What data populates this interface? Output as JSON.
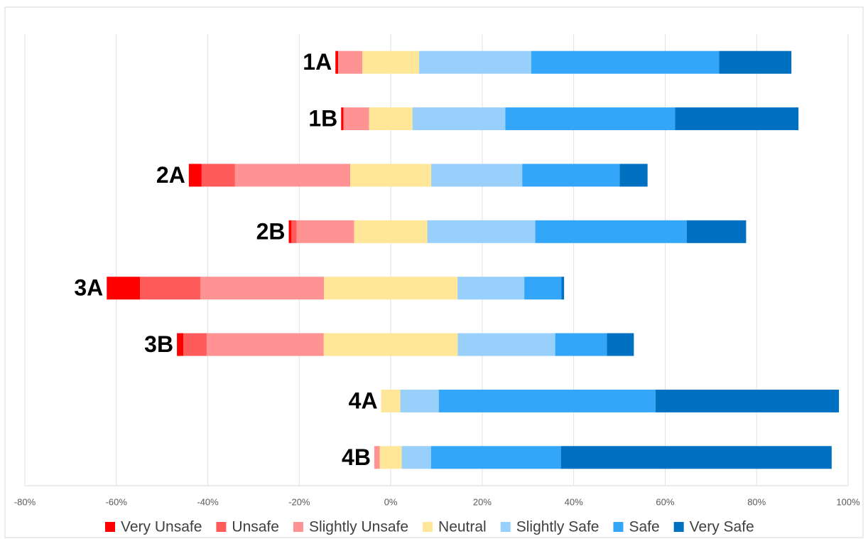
{
  "chart_data": {
    "type": "diverging_bar",
    "categories": [
      "1A",
      "1B",
      "2A",
      "2B",
      "3A",
      "3B",
      "4A",
      "4B"
    ],
    "series": [
      {
        "name": "Very Unsafe",
        "color": "#ff0000",
        "side": "negative",
        "values": [
          0.6,
          0.5,
          2.8,
          0.6,
          7.3,
          1.4,
          0,
          0
        ]
      },
      {
        "name": "Unsafe",
        "color": "#ff5b5b",
        "side": "negative",
        "values": [
          0,
          0,
          7.3,
          1.1,
          13.2,
          5.1,
          0,
          0
        ]
      },
      {
        "name": "Slightly Unsafe",
        "color": "#ff9393",
        "side": "negative",
        "values": [
          5.3,
          5.6,
          25.2,
          12.6,
          27.0,
          25.6,
          0,
          1.2
        ]
      },
      {
        "name": "Neutral",
        "color": "#ffe699",
        "side": "center",
        "values": [
          12.4,
          9.5,
          17.7,
          16.0,
          29.2,
          29.3,
          4.2,
          4.8
        ]
      },
      {
        "name": "Slightly Safe",
        "color": "#99d0fb",
        "side": "positive",
        "values": [
          24.5,
          20.3,
          19.9,
          23.6,
          14.6,
          21.3,
          8.4,
          6.4
        ]
      },
      {
        "name": "Safe",
        "color": "#33a6fa",
        "side": "positive",
        "values": [
          41.1,
          37.1,
          21.3,
          33.1,
          8.1,
          11.3,
          47.4,
          28.4
        ]
      },
      {
        "name": "Very Safe",
        "color": "#0070c0",
        "side": "positive",
        "values": [
          15.8,
          27.0,
          6.1,
          13.0,
          0.6,
          5.9,
          40.1,
          59.2
        ]
      }
    ],
    "xlim": [
      -80,
      100
    ],
    "xticks": [
      {
        "value": -80,
        "label": "-80%"
      },
      {
        "value": -60,
        "label": "-60%"
      },
      {
        "value": -40,
        "label": "-40%"
      },
      {
        "value": -20,
        "label": "-20%"
      },
      {
        "value": 0,
        "label": "0%"
      },
      {
        "value": 20,
        "label": "20%"
      },
      {
        "value": 40,
        "label": "40%"
      },
      {
        "value": 60,
        "label": "60%"
      },
      {
        "value": 80,
        "label": "80%"
      },
      {
        "value": 100,
        "label": "100%"
      }
    ],
    "grid": true,
    "legend": "bottom"
  }
}
